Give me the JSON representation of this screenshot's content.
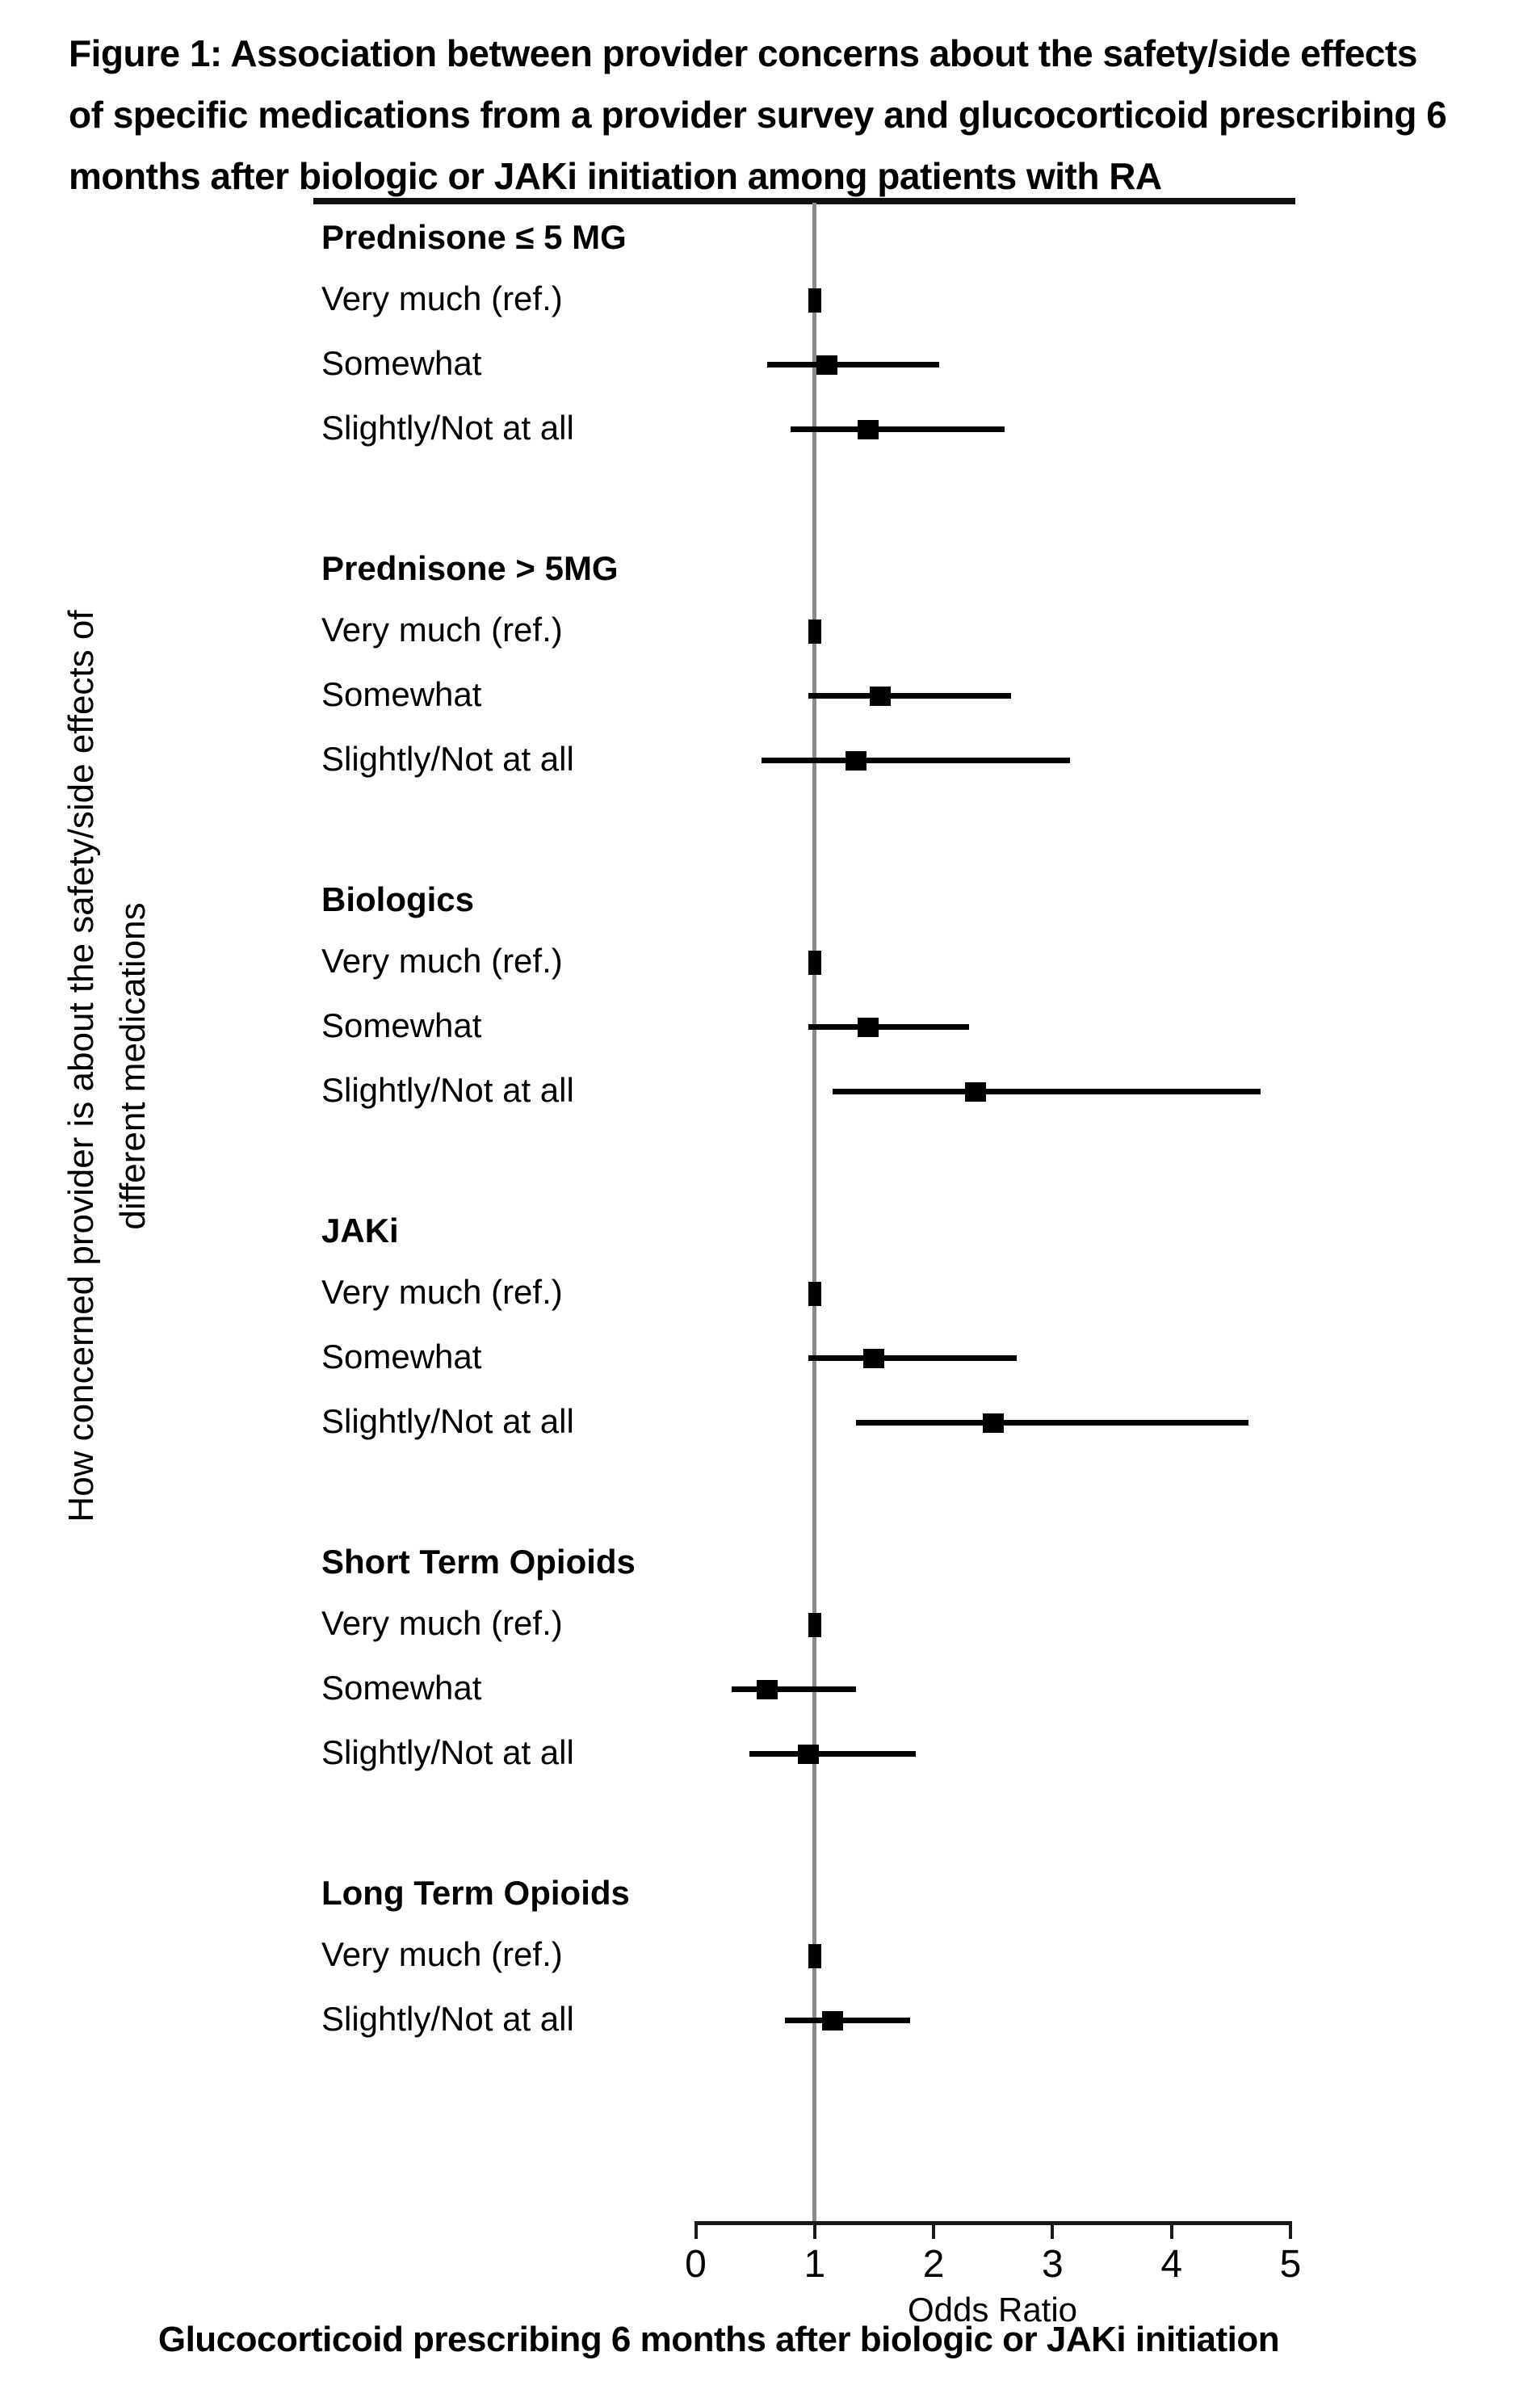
{
  "title": {
    "prefix": "Figure 1:",
    "line1_rest": " Association between provider concerns about the safety/side effects",
    "line2": "of specific medications from a provider survey and glucocorticoid prescribing 6",
    "line3": "months after biologic or JAKi initiation among patients with RA"
  },
  "colors": {
    "marker": "#000000",
    "ci_line": "#000000",
    "reference_line": "#8a8a8a",
    "axis": "#1a1a1a"
  },
  "chart_data": {
    "type": "forest",
    "x_axis": {
      "label": "Odds Ratio",
      "ticks": [
        "0",
        "1",
        "2",
        "3",
        "4",
        "5"
      ],
      "range": [
        0,
        5
      ],
      "reference_line_at": 1
    },
    "y_axis_label_line1": "How concerned provider is about the safety/side effects of",
    "y_axis_label_line2": "different medications",
    "caption": "Glucocorticoid prescribing 6 months after biologic or JAKi initiation",
    "groups": [
      {
        "name": "Prednisone ≤ 5 MG",
        "rows": [
          {
            "label": "Very much (ref.)",
            "or": 1.0,
            "ref": true
          },
          {
            "label": "Somewhat",
            "or": 1.1,
            "ci_low": 0.6,
            "ci_high": 2.05
          },
          {
            "label": "Slightly/Not at all",
            "or": 1.45,
            "ci_low": 0.8,
            "ci_high": 2.6
          }
        ]
      },
      {
        "name": "Prednisone > 5MG",
        "rows": [
          {
            "label": "Very much (ref.)",
            "or": 1.0,
            "ref": true
          },
          {
            "label": "Somewhat",
            "or": 1.55,
            "ci_low": 0.95,
            "ci_high": 2.65
          },
          {
            "label": "Slightly/Not at all",
            "or": 1.35,
            "ci_low": 0.55,
            "ci_high": 3.15
          }
        ]
      },
      {
        "name": "Biologics",
        "rows": [
          {
            "label": "Very much (ref.)",
            "or": 1.0,
            "ref": true
          },
          {
            "label": "Somewhat",
            "or": 1.45,
            "ci_low": 0.95,
            "ci_high": 2.3
          },
          {
            "label": "Slightly/Not at all",
            "or": 2.35,
            "ci_low": 1.15,
            "ci_high": 4.75
          }
        ]
      },
      {
        "name": "JAKi",
        "rows": [
          {
            "label": "Very much (ref.)",
            "or": 1.0,
            "ref": true
          },
          {
            "label": "Somewhat",
            "or": 1.5,
            "ci_low": 0.95,
            "ci_high": 2.7
          },
          {
            "label": "Slightly/Not at all",
            "or": 2.5,
            "ci_low": 1.35,
            "ci_high": 4.65
          }
        ]
      },
      {
        "name": "Short Term Opioids",
        "rows": [
          {
            "label": "Very much (ref.)",
            "or": 1.0,
            "ref": true
          },
          {
            "label": "Somewhat",
            "or": 0.6,
            "ci_low": 0.3,
            "ci_high": 1.35
          },
          {
            "label": "Slightly/Not at all",
            "or": 0.95,
            "ci_low": 0.45,
            "ci_high": 1.85
          }
        ]
      },
      {
        "name": "Long Term Opioids",
        "rows": [
          {
            "label": "Very much (ref.)",
            "or": 1.0,
            "ref": true
          },
          {
            "label": "Slightly/Not at all",
            "or": 1.15,
            "ci_low": 0.75,
            "ci_high": 1.8
          }
        ]
      }
    ]
  }
}
